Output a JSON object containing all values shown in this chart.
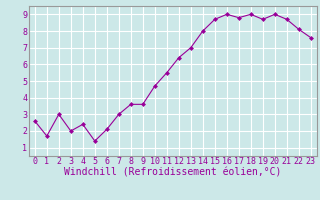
{
  "x": [
    0,
    1,
    2,
    3,
    4,
    5,
    6,
    7,
    8,
    9,
    10,
    11,
    12,
    13,
    14,
    15,
    16,
    17,
    18,
    19,
    20,
    21,
    22,
    23
  ],
  "y": [
    2.6,
    1.7,
    3.0,
    2.0,
    2.4,
    1.4,
    2.1,
    3.0,
    3.6,
    3.6,
    4.7,
    5.5,
    6.4,
    7.0,
    8.0,
    8.7,
    9.0,
    8.8,
    9.0,
    8.7,
    9.0,
    8.7,
    8.1,
    7.6
  ],
  "line_color": "#990099",
  "marker": "D",
  "marker_size": 2.0,
  "bg_color": "#cce8e8",
  "grid_color": "#ffffff",
  "xlabel": "Windchill (Refroidissement éolien,°C)",
  "xlabel_color": "#990099",
  "xlim": [
    -0.5,
    23.5
  ],
  "ylim": [
    0.5,
    9.5
  ],
  "xticks": [
    0,
    1,
    2,
    3,
    4,
    5,
    6,
    7,
    8,
    9,
    10,
    11,
    12,
    13,
    14,
    15,
    16,
    17,
    18,
    19,
    20,
    21,
    22,
    23
  ],
  "yticks": [
    1,
    2,
    3,
    4,
    5,
    6,
    7,
    8,
    9
  ],
  "tick_color": "#990099",
  "tick_labelsize": 6.0,
  "xlabel_fontsize": 7.0,
  "spine_color": "#999999"
}
